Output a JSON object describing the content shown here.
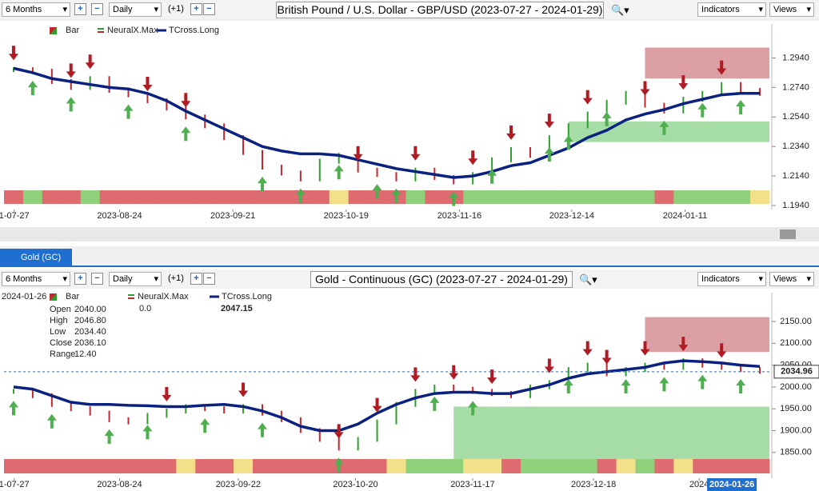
{
  "ui": {
    "toolbars": [
      {
        "range": "6 Months",
        "interval": "Daily",
        "step": "(+1)",
        "title": "British Pound / U.S. Dollar - GBP/USD (2023-07-27 - 2024-01-29)",
        "indicators": "Indicators",
        "views": "Views"
      },
      {
        "range": "6 Months",
        "interval": "Daily",
        "step": "(+1)",
        "title": "Gold - Continuous (GC) (2023-07-27 - 2024-01-29)",
        "indicators": "Indicators",
        "views": "Views"
      }
    ],
    "tab": "Gold (GC)"
  },
  "chart_data": [
    {
      "type": "ohlc",
      "indicator_name": "NeuralX.Max",
      "series": [
        {
          "name": "Bar",
          "color": "#2e9e2e",
          "values": [
            1.286,
            1.285,
            1.278,
            1.274,
            1.28,
            1.272,
            1.269,
            1.265,
            1.26,
            1.254,
            1.248,
            1.24,
            1.23,
            1.22,
            1.216,
            1.212,
            1.224,
            1.228,
            1.218,
            1.215,
            1.212,
            1.218,
            1.213,
            1.21,
            1.215,
            1.225,
            1.232,
            1.228,
            1.24,
            1.248,
            1.256,
            1.264,
            1.27,
            1.262,
            1.258,
            1.266,
            1.27,
            1.276,
            1.272,
            1.27
          ]
        },
        {
          "name": "TCross.Long",
          "color": "#0b2180",
          "values": [
            1.287,
            1.284,
            1.28,
            1.278,
            1.276,
            1.274,
            1.273,
            1.27,
            1.265,
            1.258,
            1.252,
            1.246,
            1.24,
            1.234,
            1.231,
            1.229,
            1.229,
            1.228,
            1.225,
            1.222,
            1.219,
            1.217,
            1.215,
            1.213,
            1.214,
            1.217,
            1.221,
            1.223,
            1.228,
            1.233,
            1.24,
            1.245,
            1.252,
            1.256,
            1.259,
            1.263,
            1.266,
            1.269,
            1.27,
            1.27
          ]
        }
      ],
      "signals": {
        "down": [
          0,
          3,
          4,
          7,
          9,
          18,
          21,
          24,
          26,
          28,
          30,
          33,
          35,
          37
        ],
        "up": [
          1,
          3,
          6,
          9,
          13,
          15,
          17,
          19,
          20,
          23,
          25,
          28,
          29,
          31,
          34,
          36,
          38
        ]
      },
      "zones": [
        {
          "start": 33,
          "low": 1.28,
          "high": 1.301,
          "color": "#c0505a"
        },
        {
          "start": 29,
          "low": 1.237,
          "high": 1.251,
          "color": "#5cbf5c"
        }
      ],
      "ylim": [
        1.1913,
        1.317
      ],
      "yticks": [
        {
          "value": 1.294,
          "label": "1.2940"
        },
        {
          "value": 1.274,
          "label": "1.2740"
        },
        {
          "value": 1.254,
          "label": "1.2540"
        },
        {
          "value": 1.234,
          "label": "1.2340"
        },
        {
          "value": 1.214,
          "label": "1.2140"
        },
        {
          "value": 1.194,
          "label": "1.1940"
        }
      ],
      "xlim": [
        -0.5,
        39.5
      ],
      "xticks": [
        {
          "value": 0.03,
          "label": "1-07-27"
        },
        {
          "value": 5.54,
          "label": "2023-08-24"
        },
        {
          "value": 11.46,
          "label": "2023-09-21"
        },
        {
          "value": 17.38,
          "label": "2023-10-19"
        },
        {
          "value": 23.3,
          "label": "2023-11-16"
        },
        {
          "value": 29.17,
          "label": "2023-12-14"
        },
        {
          "value": 35.09,
          "label": "2024-01-11"
        }
      ]
    },
    {
      "type": "ohlc",
      "indicator_name": "NeuralX.Max",
      "legend_values": [
        "0.0",
        "2047.15"
      ],
      "info": {
        "date": "2024-01-26",
        "rows": [
          [
            "Open",
            "2040.00"
          ],
          [
            "High",
            "2046.80"
          ],
          [
            "Low",
            "2034.40"
          ],
          [
            "Close",
            "2036.10"
          ],
          [
            "Range",
            "12.40"
          ]
        ]
      },
      "series": [
        {
          "name": "Bar",
          "color": "#2e9e2e",
          "values": [
            1990,
            1980,
            1960,
            1950,
            1940,
            1925,
            1920,
            1935,
            1945,
            1955,
            1950,
            1945,
            1955,
            1940,
            1925,
            1900,
            1880,
            1860,
            1880,
            1920,
            1960,
            1990,
            2000,
            1995,
            1990,
            1985,
            1980,
            2000,
            2010,
            2040,
            2050,
            2030,
            2040,
            2050,
            2045,
            2060,
            2050,
            2045,
            2040,
            2036
          ]
        },
        {
          "name": "TCross.Long",
          "color": "#0b2180",
          "values": [
            2000,
            1995,
            1980,
            1965,
            1960,
            1960,
            1958,
            1957,
            1955,
            1955,
            1958,
            1960,
            1955,
            1945,
            1930,
            1910,
            1900,
            1900,
            1915,
            1940,
            1960,
            1975,
            1985,
            1988,
            1988,
            1985,
            1985,
            1995,
            2005,
            2020,
            2030,
            2035,
            2040,
            2045,
            2055,
            2060,
            2058,
            2055,
            2050,
            2047
          ]
        }
      ],
      "signals": {
        "down": [
          8,
          12,
          17,
          19,
          21,
          23,
          25,
          28,
          30,
          31,
          33,
          35,
          37
        ],
        "up": [
          0,
          2,
          5,
          7,
          10,
          13,
          17,
          22,
          24,
          29,
          32,
          34,
          36,
          38
        ]
      },
      "zones": [
        {
          "start": 33,
          "low": 2080,
          "high": 2160,
          "color": "#c0505a"
        },
        {
          "start": 23,
          "low": 1835,
          "high": 1955,
          "color": "#5cbf5c"
        }
      ],
      "last_price": {
        "value": 2034.96,
        "label": "2034.96"
      },
      "ylim": [
        1791,
        2216
      ],
      "yticks": [
        {
          "value": 2150,
          "label": "2150.00"
        },
        {
          "value": 2100,
          "label": "2100.00"
        },
        {
          "value": 2050,
          "label": "2050.00"
        },
        {
          "value": 2000,
          "label": "2000.00"
        },
        {
          "value": 1950,
          "label": "1950.00"
        },
        {
          "value": 1900,
          "label": "1900.00"
        },
        {
          "value": 1850,
          "label": "1850.00"
        }
      ],
      "xlim": [
        -0.5,
        39.5
      ],
      "xticks": [
        {
          "value": 0.03,
          "label": "1-07-27"
        },
        {
          "value": 5.54,
          "label": "2023-08-24"
        },
        {
          "value": 11.74,
          "label": "2023-09-22"
        },
        {
          "value": 17.87,
          "label": "2023-10-20"
        },
        {
          "value": 23.99,
          "label": "2023-11-17"
        },
        {
          "value": 30.31,
          "label": "2023-12-18"
        },
        {
          "value": 35.83,
          "label": "2024"
        },
        {
          "value": 37.54,
          "label": "2024-01-26"
        }
      ]
    }
  ]
}
